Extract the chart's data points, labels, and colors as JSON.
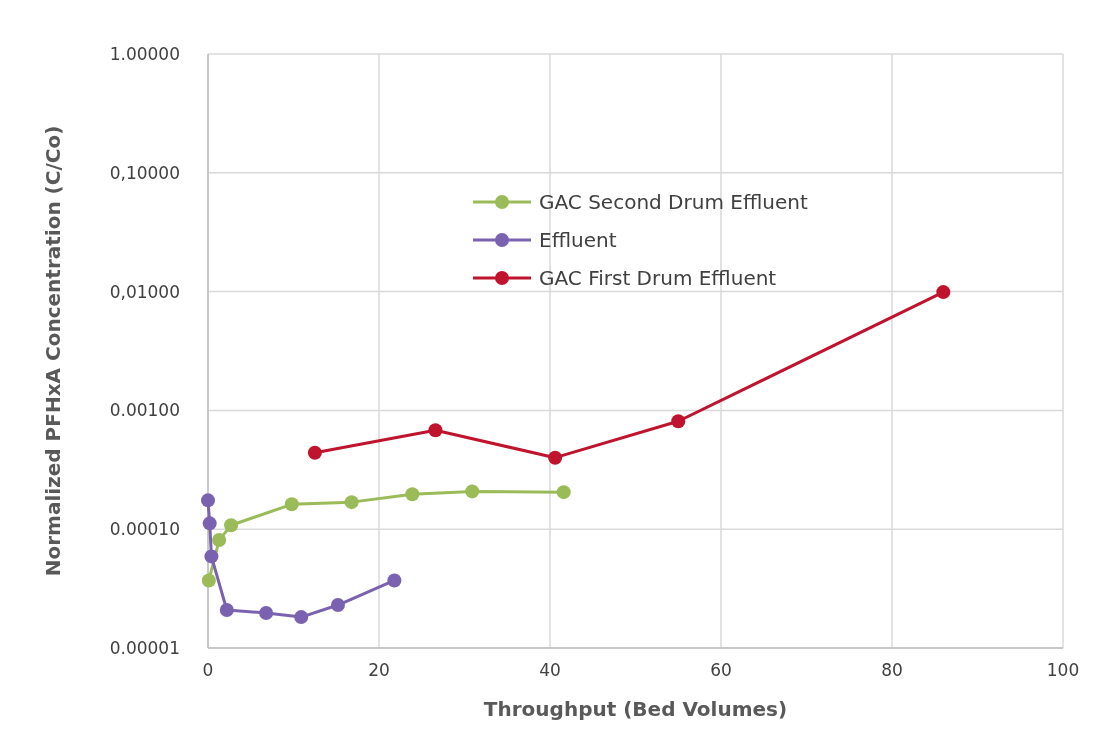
{
  "chart_data": {
    "type": "line",
    "xlabel": "Throughput  (Bed Volumes)",
    "ylabel": "Normalized PFHxA Concentration (C/Co)",
    "log": "y",
    "grid": true,
    "legend": "top",
    "marker": "circle",
    "line_style": "solid",
    "xlim": [
      0,
      100
    ],
    "xticks": [
      0,
      20,
      40,
      60,
      80,
      100
    ],
    "ylim": [
      1e-05,
      1
    ],
    "yticks": [
      {
        "value": 1,
        "label": "1.00000"
      },
      {
        "value": 0.1,
        "label": "0,10000"
      },
      {
        "value": 0.01,
        "label": "0,01000"
      },
      {
        "value": 0.001,
        "label": "0.00100"
      },
      {
        "value": 0.0001,
        "label": "0.00010"
      },
      {
        "value": 1e-05,
        "label": "0.00001"
      }
    ],
    "series": [
      {
        "name": "GAC Second Drum Effluent",
        "color": "#9bbb59",
        "x": [
          0.1,
          1.3,
          2.7,
          9.8,
          16.8,
          23.9,
          30.9,
          41.6
        ],
        "values": [
          3.7e-05,
          8.1e-05,
          0.000108,
          0.000162,
          0.000169,
          0.000197,
          0.000208,
          0.000205
        ]
      },
      {
        "name": "Effluent",
        "color": "#7a62b0",
        "x": [
          0,
          0.2,
          0.4,
          2.2,
          6.8,
          10.9,
          15.2,
          21.8
        ],
        "values": [
          0.000175,
          0.000112,
          5.9e-05,
          2.09e-05,
          1.97e-05,
          1.82e-05,
          2.3e-05,
          3.7e-05
        ]
      },
      {
        "name": "GAC First Drum Effluent",
        "color": "#c0142e",
        "x": [
          12.5,
          26.6,
          40.6,
          55,
          86
        ],
        "values": [
          0.00044,
          0.00068,
          0.0004,
          0.00081,
          0.0099
        ]
      }
    ]
  }
}
